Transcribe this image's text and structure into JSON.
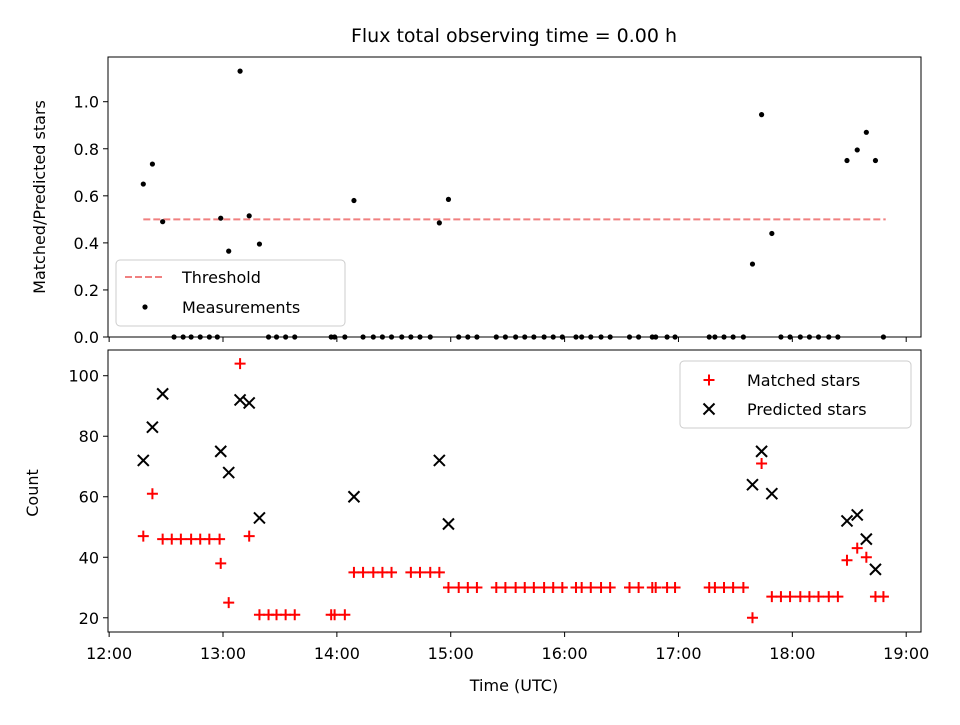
{
  "chart_data": [
    {
      "type": "scatter",
      "title": "Flux total observing time = 0.00 h",
      "xlabel": "",
      "ylabel": "Matched/Predicted stars",
      "x_unit": "hours UTC",
      "xlim": [
        11.99,
        19.13
      ],
      "ylim": [
        0,
        1.19
      ],
      "yticks": [
        0.0,
        0.2,
        0.4,
        0.6,
        0.8,
        1.0
      ],
      "ytick_labels": [
        "0.0",
        "0.2",
        "0.4",
        "0.6",
        "0.8",
        "1.0"
      ],
      "grid": false,
      "legend_position": "lower-left",
      "threshold": {
        "name": "Threshold",
        "y": 0.5,
        "x": [
          12.3,
          18.82
        ],
        "color": "#f08080",
        "style": "dashed"
      },
      "series": [
        {
          "name": "Measurements",
          "color": "#000000",
          "marker": "dot",
          "points": [
            [
              12.3,
              0.65
            ],
            [
              12.38,
              0.735
            ],
            [
              12.47,
              0.49
            ],
            [
              12.57,
              0
            ],
            [
              12.65,
              0
            ],
            [
              12.72,
              0
            ],
            [
              12.8,
              0
            ],
            [
              12.88,
              0
            ],
            [
              12.95,
              0
            ],
            [
              12.98,
              0.505
            ],
            [
              13.05,
              0.365
            ],
            [
              13.15,
              1.13
            ],
            [
              13.23,
              0.515
            ],
            [
              13.32,
              0.395
            ],
            [
              13.4,
              0
            ],
            [
              13.47,
              0
            ],
            [
              13.55,
              0
            ],
            [
              13.63,
              0
            ],
            [
              13.95,
              0
            ],
            [
              13.98,
              0
            ],
            [
              14.07,
              0
            ],
            [
              14.15,
              0.58
            ],
            [
              14.23,
              0
            ],
            [
              14.32,
              0
            ],
            [
              14.4,
              0
            ],
            [
              14.48,
              0
            ],
            [
              14.57,
              0
            ],
            [
              14.65,
              0
            ],
            [
              14.73,
              0
            ],
            [
              14.82,
              0
            ],
            [
              14.9,
              0.485
            ],
            [
              14.98,
              0.585
            ],
            [
              15.07,
              0
            ],
            [
              15.15,
              0
            ],
            [
              15.23,
              0
            ],
            [
              15.4,
              0
            ],
            [
              15.48,
              0
            ],
            [
              15.57,
              0
            ],
            [
              15.65,
              0
            ],
            [
              15.73,
              0
            ],
            [
              15.82,
              0
            ],
            [
              15.9,
              0
            ],
            [
              15.98,
              0
            ],
            [
              16.1,
              0
            ],
            [
              16.15,
              0
            ],
            [
              16.23,
              0
            ],
            [
              16.32,
              0
            ],
            [
              16.4,
              0
            ],
            [
              16.57,
              0
            ],
            [
              16.65,
              0
            ],
            [
              16.77,
              0
            ],
            [
              16.8,
              0
            ],
            [
              16.9,
              0
            ],
            [
              16.97,
              0
            ],
            [
              17.27,
              0
            ],
            [
              17.32,
              0
            ],
            [
              17.4,
              0
            ],
            [
              17.48,
              0
            ],
            [
              17.57,
              0
            ],
            [
              17.65,
              0.31
            ],
            [
              17.73,
              0.945
            ],
            [
              17.82,
              0.44
            ],
            [
              17.9,
              0
            ],
            [
              17.98,
              0
            ],
            [
              18.07,
              0
            ],
            [
              18.15,
              0
            ],
            [
              18.23,
              0
            ],
            [
              18.32,
              0
            ],
            [
              18.4,
              0
            ],
            [
              18.48,
              0.75
            ],
            [
              18.57,
              0.795
            ],
            [
              18.65,
              0.87
            ],
            [
              18.73,
              0.75
            ],
            [
              18.8,
              0
            ]
          ]
        }
      ]
    },
    {
      "type": "scatter",
      "title": "",
      "xlabel": "Time (UTC)",
      "ylabel": "Count",
      "x_unit": "hours UTC",
      "xlim": [
        11.99,
        19.13
      ],
      "ylim": [
        15.3,
        108.5
      ],
      "xticks": [
        12,
        13,
        14,
        15,
        16,
        17,
        18,
        19
      ],
      "xtick_labels": [
        "12:00",
        "13:00",
        "14:00",
        "15:00",
        "16:00",
        "17:00",
        "18:00",
        "19:00"
      ],
      "yticks": [
        20,
        40,
        60,
        80,
        100
      ],
      "ytick_labels": [
        "20",
        "40",
        "60",
        "80",
        "100"
      ],
      "grid": false,
      "legend_position": "upper-right",
      "series": [
        {
          "name": "Matched stars",
          "color": "#ff0000",
          "marker": "plus",
          "points": [
            [
              12.3,
              47
            ],
            [
              12.38,
              61
            ],
            [
              12.47,
              46
            ],
            [
              12.55,
              46
            ],
            [
              12.63,
              46
            ],
            [
              12.72,
              46
            ],
            [
              12.8,
              46
            ],
            [
              12.88,
              46
            ],
            [
              12.97,
              46
            ],
            [
              12.98,
              38
            ],
            [
              13.05,
              25
            ],
            [
              13.15,
              104
            ],
            [
              13.23,
              47
            ],
            [
              13.32,
              21
            ],
            [
              13.4,
              21
            ],
            [
              13.47,
              21
            ],
            [
              13.55,
              21
            ],
            [
              13.63,
              21
            ],
            [
              13.95,
              21
            ],
            [
              13.98,
              21
            ],
            [
              14.07,
              21
            ],
            [
              14.15,
              35
            ],
            [
              14.23,
              35
            ],
            [
              14.32,
              35
            ],
            [
              14.4,
              35
            ],
            [
              14.48,
              35
            ],
            [
              14.65,
              35
            ],
            [
              14.73,
              35
            ],
            [
              14.82,
              35
            ],
            [
              14.9,
              35
            ],
            [
              14.98,
              30
            ],
            [
              15.07,
              30
            ],
            [
              15.15,
              30
            ],
            [
              15.23,
              30
            ],
            [
              15.4,
              30
            ],
            [
              15.48,
              30
            ],
            [
              15.57,
              30
            ],
            [
              15.65,
              30
            ],
            [
              15.73,
              30
            ],
            [
              15.82,
              30
            ],
            [
              15.9,
              30
            ],
            [
              15.98,
              30
            ],
            [
              16.1,
              30
            ],
            [
              16.15,
              30
            ],
            [
              16.23,
              30
            ],
            [
              16.32,
              30
            ],
            [
              16.4,
              30
            ],
            [
              16.57,
              30
            ],
            [
              16.65,
              30
            ],
            [
              16.77,
              30
            ],
            [
              16.8,
              30
            ],
            [
              16.9,
              30
            ],
            [
              16.97,
              30
            ],
            [
              17.27,
              30
            ],
            [
              17.32,
              30
            ],
            [
              17.4,
              30
            ],
            [
              17.48,
              30
            ],
            [
              17.57,
              30
            ],
            [
              17.65,
              20
            ],
            [
              17.73,
              71
            ],
            [
              17.82,
              27
            ],
            [
              17.9,
              27
            ],
            [
              17.98,
              27
            ],
            [
              18.07,
              27
            ],
            [
              18.15,
              27
            ],
            [
              18.23,
              27
            ],
            [
              18.32,
              27
            ],
            [
              18.4,
              27
            ],
            [
              18.48,
              39
            ],
            [
              18.57,
              43
            ],
            [
              18.65,
              40
            ],
            [
              18.73,
              27
            ],
            [
              18.8,
              27
            ]
          ]
        },
        {
          "name": "Predicted stars",
          "color": "#000000",
          "marker": "x",
          "points": [
            [
              12.3,
              72
            ],
            [
              12.38,
              83
            ],
            [
              12.47,
              94
            ],
            [
              12.98,
              75
            ],
            [
              13.05,
              68
            ],
            [
              13.15,
              92
            ],
            [
              13.23,
              91
            ],
            [
              13.32,
              53
            ],
            [
              14.15,
              60
            ],
            [
              14.9,
              72
            ],
            [
              14.98,
              51
            ],
            [
              17.65,
              64
            ],
            [
              17.73,
              75
            ],
            [
              17.82,
              61
            ],
            [
              18.48,
              52
            ],
            [
              18.57,
              54
            ],
            [
              18.65,
              46
            ],
            [
              18.73,
              36
            ]
          ]
        }
      ]
    }
  ]
}
